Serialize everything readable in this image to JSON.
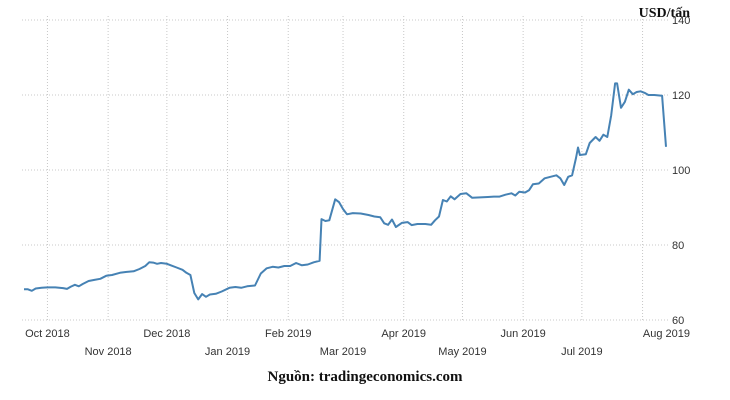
{
  "source_caption": "Nguồn: tradingeconomics.com",
  "chart_data": {
    "type": "line",
    "unit_label": "USD/tấn",
    "y_ticks": [
      60,
      80,
      100,
      120,
      140
    ],
    "ylim": [
      60,
      140
    ],
    "x_ticks": [
      "Oct 2018",
      "Nov 2018",
      "Dec 2018",
      "Jan 2019",
      "Feb 2019",
      "Mar 2019",
      "Apr 2019",
      "May 2019",
      "Jun 2019",
      "Jul 2019",
      "Aug 2019"
    ],
    "grid": true,
    "series_color": "#4682b4",
    "series": [
      {
        "name": "",
        "points": [
          [
            "2018-09-19",
            68.2
          ],
          [
            "2018-09-21",
            68.2
          ],
          [
            "2018-09-23",
            67.8
          ],
          [
            "2018-09-25",
            68.4
          ],
          [
            "2018-09-28",
            68.6
          ],
          [
            "2018-10-01",
            68.7
          ],
          [
            "2018-10-05",
            68.7
          ],
          [
            "2018-10-09",
            68.5
          ],
          [
            "2018-10-11",
            68.3
          ],
          [
            "2018-10-13",
            68.9
          ],
          [
            "2018-10-15",
            69.4
          ],
          [
            "2018-10-17",
            69.0
          ],
          [
            "2018-10-19",
            69.6
          ],
          [
            "2018-10-22",
            70.4
          ],
          [
            "2018-10-25",
            70.7
          ],
          [
            "2018-10-28",
            71.0
          ],
          [
            "2018-10-31",
            71.8
          ],
          [
            "2018-11-03",
            72.0
          ],
          [
            "2018-11-07",
            72.6
          ],
          [
            "2018-11-10",
            72.8
          ],
          [
            "2018-11-14",
            73.0
          ],
          [
            "2018-11-17",
            73.6
          ],
          [
            "2018-11-20",
            74.4
          ],
          [
            "2018-11-22",
            75.4
          ],
          [
            "2018-11-24",
            75.3
          ],
          [
            "2018-11-26",
            75.0
          ],
          [
            "2018-11-28",
            75.2
          ],
          [
            "2018-12-01",
            75.0
          ],
          [
            "2018-12-03",
            74.6
          ],
          [
            "2018-12-06",
            74.0
          ],
          [
            "2018-12-09",
            73.4
          ],
          [
            "2018-12-11",
            72.6
          ],
          [
            "2018-12-13",
            72.0
          ],
          [
            "2018-12-15",
            67.2
          ],
          [
            "2018-12-17",
            65.5
          ],
          [
            "2018-12-19",
            66.9
          ],
          [
            "2018-12-21",
            66.2
          ],
          [
            "2018-12-23",
            66.8
          ],
          [
            "2018-12-26",
            67.0
          ],
          [
            "2018-12-29",
            67.6
          ],
          [
            "2019-01-02",
            68.6
          ],
          [
            "2019-01-05",
            68.8
          ],
          [
            "2019-01-08",
            68.6
          ],
          [
            "2019-01-11",
            69.0
          ],
          [
            "2019-01-15",
            69.2
          ],
          [
            "2019-01-18",
            72.4
          ],
          [
            "2019-01-21",
            73.8
          ],
          [
            "2019-01-24",
            74.2
          ],
          [
            "2019-01-27",
            74.0
          ],
          [
            "2019-01-30",
            74.4
          ],
          [
            "2019-02-02",
            74.4
          ],
          [
            "2019-02-05",
            75.2
          ],
          [
            "2019-02-08",
            74.6
          ],
          [
            "2019-02-11",
            74.8
          ],
          [
            "2019-02-14",
            75.4
          ],
          [
            "2019-02-17",
            75.8
          ],
          [
            "2019-02-18",
            86.9
          ],
          [
            "2019-02-20",
            86.4
          ],
          [
            "2019-02-22",
            86.6
          ],
          [
            "2019-02-25",
            92.2
          ],
          [
            "2019-02-27",
            91.4
          ],
          [
            "2019-03-01",
            89.6
          ],
          [
            "2019-03-03",
            88.2
          ],
          [
            "2019-03-06",
            88.5
          ],
          [
            "2019-03-10",
            88.4
          ],
          [
            "2019-03-14",
            88.0
          ],
          [
            "2019-03-17",
            87.6
          ],
          [
            "2019-03-20",
            87.4
          ],
          [
            "2019-03-22",
            85.8
          ],
          [
            "2019-03-24",
            85.4
          ],
          [
            "2019-03-26",
            86.8
          ],
          [
            "2019-03-28",
            84.8
          ],
          [
            "2019-03-31",
            85.9
          ],
          [
            "2019-04-03",
            86.1
          ],
          [
            "2019-04-05",
            85.3
          ],
          [
            "2019-04-08",
            85.6
          ],
          [
            "2019-04-12",
            85.6
          ],
          [
            "2019-04-15",
            85.4
          ],
          [
            "2019-04-17",
            86.6
          ],
          [
            "2019-04-19",
            87.6
          ],
          [
            "2019-04-21",
            92.0
          ],
          [
            "2019-04-23",
            91.6
          ],
          [
            "2019-04-25",
            93.0
          ],
          [
            "2019-04-27",
            92.2
          ],
          [
            "2019-04-30",
            93.6
          ],
          [
            "2019-05-03",
            93.8
          ],
          [
            "2019-05-06",
            92.6
          ],
          [
            "2019-05-10",
            92.7
          ],
          [
            "2019-05-14",
            92.8
          ],
          [
            "2019-05-17",
            92.9
          ],
          [
            "2019-05-20",
            92.9
          ],
          [
            "2019-05-23",
            93.4
          ],
          [
            "2019-05-26",
            93.8
          ],
          [
            "2019-05-28",
            93.2
          ],
          [
            "2019-05-30",
            94.2
          ],
          [
            "2019-06-02",
            94.0
          ],
          [
            "2019-06-04",
            94.6
          ],
          [
            "2019-06-06",
            96.2
          ],
          [
            "2019-06-09",
            96.4
          ],
          [
            "2019-06-12",
            97.8
          ],
          [
            "2019-06-15",
            98.2
          ],
          [
            "2019-06-18",
            98.6
          ],
          [
            "2019-06-20",
            97.8
          ],
          [
            "2019-06-22",
            96.0
          ],
          [
            "2019-06-24",
            98.2
          ],
          [
            "2019-06-26",
            98.6
          ],
          [
            "2019-06-28",
            103.2
          ],
          [
            "2019-06-29",
            106.0
          ],
          [
            "2019-06-30",
            104.0
          ],
          [
            "2019-07-03",
            104.2
          ],
          [
            "2019-07-05",
            107.2
          ],
          [
            "2019-07-08",
            108.8
          ],
          [
            "2019-07-10",
            107.8
          ],
          [
            "2019-07-12",
            109.4
          ],
          [
            "2019-07-14",
            108.8
          ],
          [
            "2019-07-16",
            114.6
          ],
          [
            "2019-07-18",
            123.1
          ],
          [
            "2019-07-19",
            123.1
          ],
          [
            "2019-07-21",
            116.6
          ],
          [
            "2019-07-23",
            118.2
          ],
          [
            "2019-07-25",
            121.4
          ],
          [
            "2019-07-27",
            120.2
          ],
          [
            "2019-07-29",
            120.8
          ],
          [
            "2019-07-31",
            121.0
          ],
          [
            "2019-08-02",
            120.6
          ],
          [
            "2019-08-04",
            120.0
          ],
          [
            "2019-08-07",
            120.0
          ],
          [
            "2019-08-11",
            119.8
          ],
          [
            "2019-08-13",
            106.2
          ]
        ]
      }
    ]
  }
}
